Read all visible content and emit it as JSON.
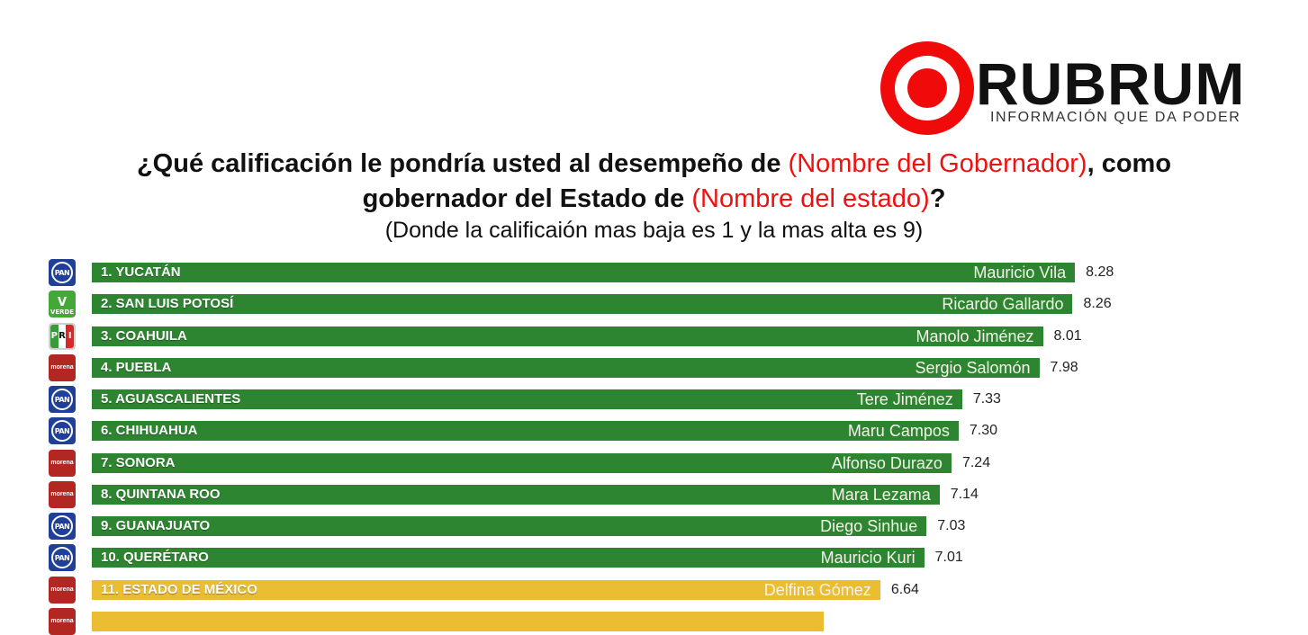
{
  "logo": {
    "name": "RUBRUM",
    "tagline": "INFORMACIÓN QUE DA PODER"
  },
  "question": {
    "line1_a": "¿Qué calificación le pondría usted al desempeño de ",
    "line1_red": "(Nombre del Gobernador)",
    "line1_b": ", como",
    "line2_a": "gobernador del Estado de ",
    "line2_red": "(Nombre del estado)",
    "line2_b": "?",
    "line3": "(Donde la calificaión mas baja es 1 y la mas alta es 9)"
  },
  "colors": {
    "high": "#2e8531",
    "mid": "#eabd33",
    "accent_red": "#ee1111"
  },
  "chart_data": {
    "type": "bar",
    "orientation": "horizontal",
    "title": "¿Qué calificación le pondría usted al desempeño de (Nombre del Gobernador), como gobernador del Estado de (Nombre del estado)?",
    "subtitle": "(Donde la calificaión mas baja es 1 y la mas alta es 9)",
    "xlim": [
      0,
      9
    ],
    "grid": false,
    "legend": "none",
    "categories": [
      "1. YUCATÁN",
      "2. SAN LUIS POTOSÍ",
      "3. COAHUILA",
      "4. PUEBLA",
      "5. AGUASCALIENTES",
      "6. CHIHUAHUA",
      "7. SONORA",
      "8. QUINTANA ROO",
      "9. GUANAJUATO",
      "10. QUERÉTARO",
      "11. ESTADO DE MÉXICO"
    ],
    "governors": [
      "Mauricio Vila",
      "Ricardo Gallardo",
      "Manolo Jiménez",
      "Sergio Salomón",
      "Tere Jiménez",
      "Maru Campos",
      "Alfonso Durazo",
      "Mara Lezama",
      "Diego Sinhue",
      "Mauricio Kuri",
      "Delfina Gómez"
    ],
    "parties": [
      "PAN",
      "VERDE",
      "PRI",
      "morena",
      "PAN",
      "PAN",
      "morena",
      "morena",
      "PAN",
      "PAN",
      "morena"
    ],
    "values": [
      8.28,
      8.26,
      8.01,
      7.98,
      7.33,
      7.3,
      7.24,
      7.14,
      7.03,
      7.01,
      6.64
    ],
    "value_labels": [
      "8.28",
      "8.26",
      "8.01",
      "7.98",
      "7.33",
      "7.30",
      "7.24",
      "7.14",
      "7.03",
      "7.01",
      "6.64"
    ],
    "bar_colors": [
      "green",
      "green",
      "green",
      "green",
      "green",
      "green",
      "green",
      "green",
      "green",
      "green",
      "yellow"
    ]
  }
}
